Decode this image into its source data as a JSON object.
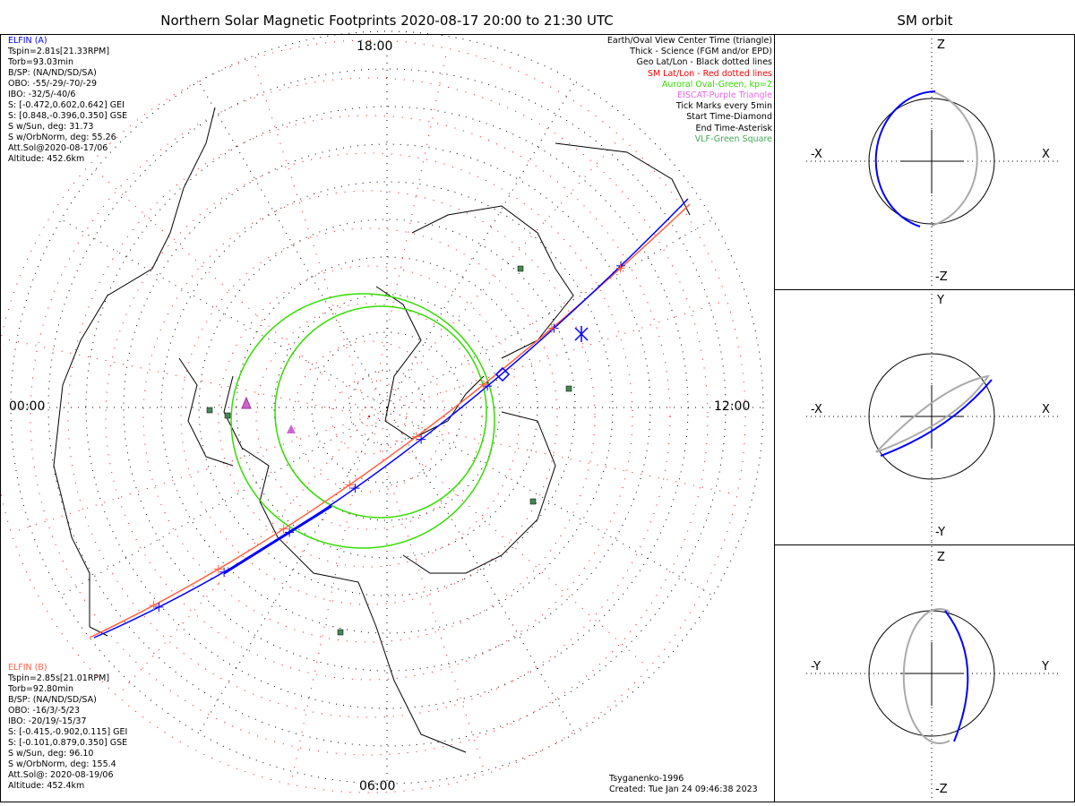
{
  "title": "Northern Solar Magnetic Footprints 2020-08-17 20:00 to 21:30 UTC",
  "sm_orbit_title": "SM orbit",
  "time_labels": {
    "top": "18:00",
    "bottom": "06:00",
    "left": "00:00",
    "right": "12:00"
  },
  "elfin_a": {
    "name": "ELFIN (A)",
    "color": "#0000ff",
    "lines": [
      "Tspin=2.81s[21.33RPM]",
      "Torb=93.03min",
      "B/SP: (NA/ND/SD/SA)",
      "OBO: -55/-29/-70/-29",
      "IBO: -32/5/-40/6",
      "S: [-0.472,0.602,0.642] GEI",
      "S: [0.848,-0.396,0.350] GSE",
      "S w/Sun, deg: 31.73",
      "S w/OrbNorm, deg: 55.26",
      "Att.Sol@2020-08-17/06",
      "Altitude: 452.6km"
    ]
  },
  "elfin_b": {
    "name": "ELFIN (B)",
    "color": "#ff6040",
    "lines": [
      "Tspin=2.85s[21.01RPM]",
      "Torb=92.80min",
      "B/SP: (NA/ND/SD/SA)",
      "OBO: -16/3/-5/23",
      "IBO: -20/19/-15/37",
      "S: [-0.415,-0.902,0.115] GEI",
      "S: [-0.101,0.879,0.350] GSE",
      "S w/Sun, deg: 96.10",
      "S w/OrbNorm, deg: 155.4",
      "Att.Sol@: 2020-08-19/06",
      "Altitude: 452.4km"
    ]
  },
  "legend": [
    {
      "text": "Earth/Oval View Center Time (triangle)",
      "color": "#000000"
    },
    {
      "text": "Thick - Science (FGM and/or EPD)",
      "color": "#000000"
    },
    {
      "text": "Geo Lat/Lon - Black dotted lines",
      "color": "#000000"
    },
    {
      "text": "SM Lat/Lon - Red dotted lines",
      "color": "#ff0000"
    },
    {
      "text": "Auroral Oval-Green, kp=2",
      "color": "#33dd00"
    },
    {
      "text": "EISCAT-Purple Triangle",
      "color": "#ee66ee"
    },
    {
      "text": "Tick Marks every 5min",
      "color": "#000000"
    },
    {
      "text": "Start Time-Diamond",
      "color": "#000000"
    },
    {
      "text": "End Time-Asterisk",
      "color": "#000000"
    },
    {
      "text": "VLF-Green Square",
      "color": "#44aa55"
    }
  ],
  "credits": {
    "model": "Tsyganenko-1996",
    "created": "Created: Tue Jan 24 09:46:38 2023"
  },
  "orbit_panels": [
    {
      "top": "Z",
      "bottom": "-Z",
      "left": "-X",
      "right": "X"
    },
    {
      "top": "Y",
      "bottom": "-Y",
      "left": "-X",
      "right": "X"
    },
    {
      "top": "Z",
      "bottom": "-Z",
      "left": "-Y",
      "right": "Y"
    }
  ]
}
